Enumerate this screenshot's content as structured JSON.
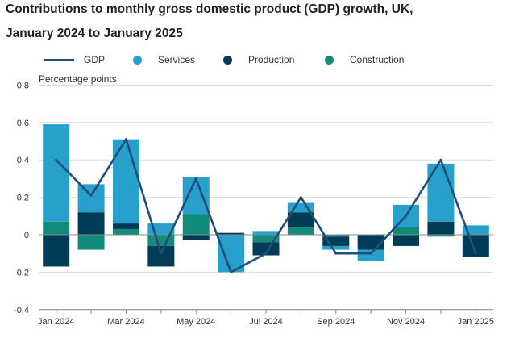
{
  "title_line1": "Contributions to monthly gross domestic product (GDP) growth, UK,",
  "title_line2": "January 2024 to January 2025",
  "legend": {
    "gdp": "GDP",
    "services": "Services",
    "production": "Production",
    "construction": "Construction"
  },
  "colors": {
    "gdp": "#1f4e79",
    "services": "#27a0cc",
    "production": "#003c57",
    "construction": "#118c7b",
    "grid": "#d9d9d9"
  },
  "chart_data": {
    "type": "bar",
    "stacked": true,
    "title": "Contributions to monthly gross domestic product (GDP) growth, UK, January 2024 to January 2025",
    "ylabel": "Percentage points",
    "xlabel": "",
    "ylim": [
      -0.4,
      0.8
    ],
    "yticks": [
      -0.4,
      -0.2,
      0,
      0.2,
      0.4,
      0.6,
      0.8
    ],
    "grid": true,
    "legend_position": "top",
    "categories": [
      "Jan 2024",
      "Feb 2024",
      "Mar 2024",
      "Apr 2024",
      "May 2024",
      "Jun 2024",
      "Jul 2024",
      "Aug 2024",
      "Sep 2024",
      "Oct 2024",
      "Nov 2024",
      "Dec 2024",
      "Jan 2025"
    ],
    "x_tick_labels": [
      "Jan 2024",
      "",
      "Mar 2024",
      "",
      "May 2024",
      "",
      "Jul 2024",
      "",
      "Sep 2024",
      "",
      "Nov 2024",
      "",
      "Jan 2025"
    ],
    "series": [
      {
        "name": "Construction",
        "kind": "bar",
        "values": [
          0.07,
          -0.08,
          0.03,
          -0.06,
          0.11,
          0.0,
          -0.04,
          0.04,
          -0.01,
          0.0,
          0.04,
          -0.01,
          0.0
        ]
      },
      {
        "name": "Production",
        "kind": "bar",
        "values": [
          -0.17,
          0.12,
          0.03,
          -0.11,
          -0.03,
          0.01,
          -0.07,
          0.08,
          -0.05,
          -0.08,
          -0.06,
          0.07,
          -0.12
        ]
      },
      {
        "name": "Services",
        "kind": "bar",
        "values": [
          0.52,
          0.15,
          0.45,
          0.06,
          0.2,
          -0.2,
          0.02,
          0.05,
          -0.02,
          -0.06,
          0.12,
          0.31,
          0.05
        ]
      },
      {
        "name": "GDP",
        "kind": "line",
        "values": [
          0.4,
          0.21,
          0.51,
          -0.1,
          0.3,
          -0.2,
          -0.1,
          0.2,
          -0.1,
          -0.1,
          0.1,
          0.4,
          -0.1
        ]
      }
    ]
  }
}
